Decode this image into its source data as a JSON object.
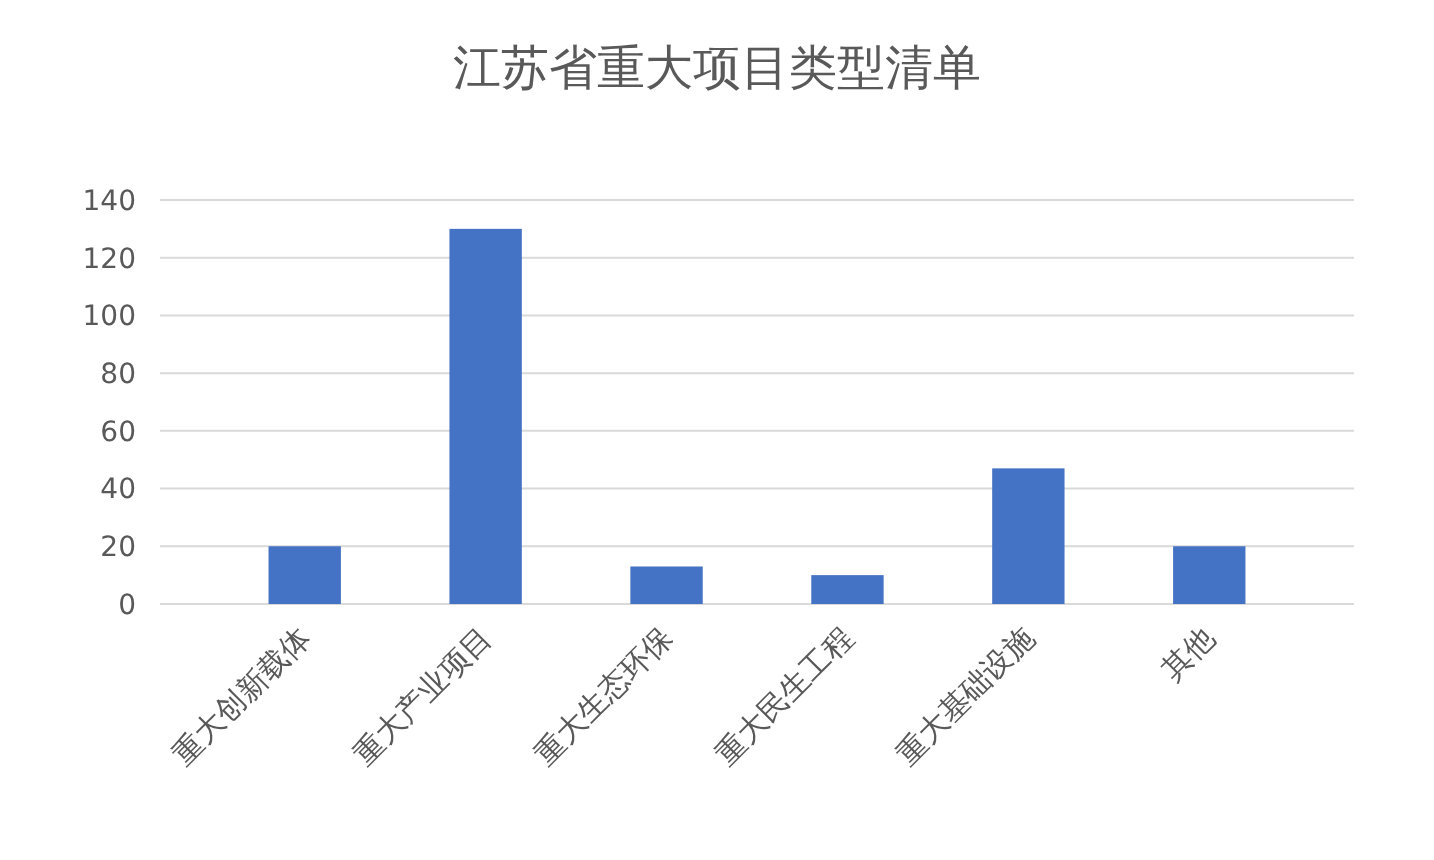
{
  "chart_data": {
    "type": "bar",
    "title": "江苏省重大项目类型清单",
    "categories": [
      "重大创新载体",
      "重大产业项目",
      "重大生态环保",
      "重大民生工程",
      "重大基础设施",
      "其他"
    ],
    "values": [
      20,
      130,
      13,
      10,
      47,
      20
    ],
    "color": "#4472c4",
    "ylim": [
      0,
      140
    ],
    "yticks": [
      0,
      20,
      40,
      60,
      80,
      100,
      120,
      140
    ],
    "grid": "y"
  }
}
